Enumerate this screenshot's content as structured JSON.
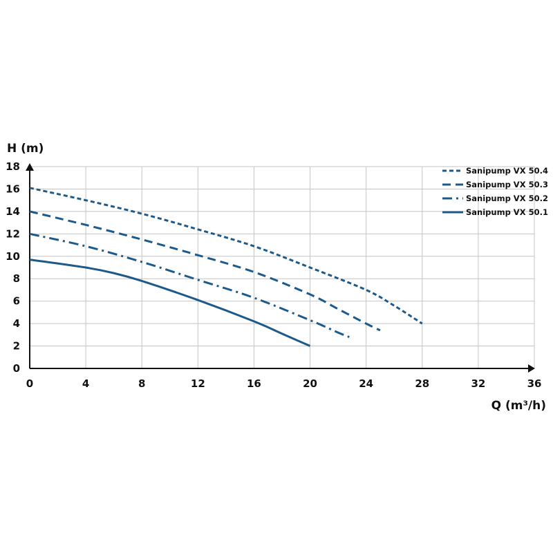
{
  "chart_data": {
    "type": "line",
    "title": "",
    "xlabel": "Q (m³/h)",
    "ylabel": "H (m)",
    "xlim": [
      0,
      36
    ],
    "ylim": [
      0,
      18
    ],
    "x_ticks": [
      0,
      4,
      8,
      12,
      16,
      20,
      24,
      28,
      32,
      36
    ],
    "y_ticks": [
      0,
      2,
      4,
      6,
      8,
      10,
      12,
      14,
      16,
      18
    ],
    "grid": true,
    "legend_position": "top-right",
    "line_color": "#1d5a8c",
    "series": [
      {
        "name": "Sanipump VX 50.4",
        "dash": "short-dash",
        "points": [
          [
            0,
            16.1
          ],
          [
            4,
            15.0
          ],
          [
            8,
            13.8
          ],
          [
            12,
            12.4
          ],
          [
            16,
            10.9
          ],
          [
            20,
            9.0
          ],
          [
            24,
            7.0
          ],
          [
            26,
            5.6
          ],
          [
            28,
            4.0
          ]
        ]
      },
      {
        "name": "Sanipump VX 50.3",
        "dash": "long-dash",
        "points": [
          [
            0,
            14.0
          ],
          [
            4,
            12.8
          ],
          [
            8,
            11.5
          ],
          [
            12,
            10.1
          ],
          [
            16,
            8.6
          ],
          [
            20,
            6.6
          ],
          [
            22,
            5.3
          ],
          [
            24,
            4.0
          ],
          [
            25,
            3.4
          ]
        ]
      },
      {
        "name": "Sanipump VX 50.2",
        "dash": "dash-dot",
        "points": [
          [
            0,
            12.0
          ],
          [
            4,
            10.9
          ],
          [
            8,
            9.5
          ],
          [
            12,
            7.9
          ],
          [
            16,
            6.3
          ],
          [
            20,
            4.3
          ],
          [
            22,
            3.2
          ],
          [
            22.8,
            2.8
          ]
        ]
      },
      {
        "name": "Sanipump VX 50.1",
        "dash": "solid",
        "points": [
          [
            0,
            9.7
          ],
          [
            4,
            9.0
          ],
          [
            6,
            8.5
          ],
          [
            8,
            7.8
          ],
          [
            12,
            6.1
          ],
          [
            16,
            4.2
          ],
          [
            18,
            3.1
          ],
          [
            20,
            2.0
          ]
        ]
      }
    ]
  }
}
